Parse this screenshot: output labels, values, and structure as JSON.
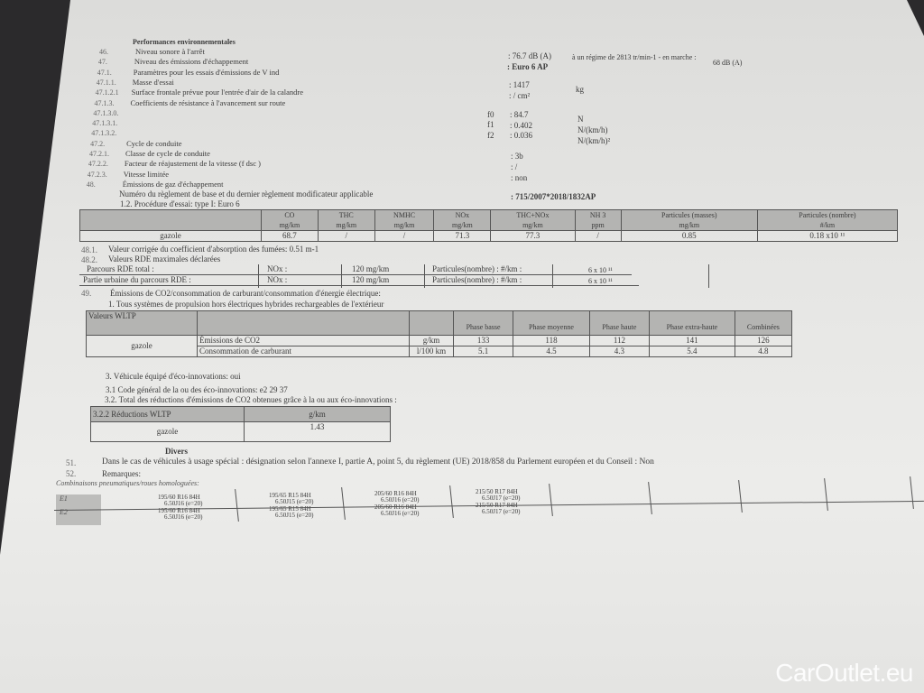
{
  "section_title": "Performances environnementales",
  "items": [
    {
      "num": "46.",
      "label": "Niveau sonore à l'arrêt"
    },
    {
      "num": "47.",
      "label": "Niveau des émissions d'échappement"
    },
    {
      "num": "47.1.",
      "label": "Paramètres pour les essais d'émissions de V ind"
    },
    {
      "num": "47.1.1.",
      "label": "Masse d'essai"
    },
    {
      "num": "47.1.2.1",
      "label": "Surface frontale prévue pour l'entrée d'air de la calandre"
    },
    {
      "num": "47.1.3.",
      "label": "Coefficients de résistance à l'avancement sur route"
    },
    {
      "num": "47.1.3.0.",
      "label": ""
    },
    {
      "num": "47.1.3.1.",
      "label": ""
    },
    {
      "num": "47.1.3.2.",
      "label": ""
    },
    {
      "num": "47.2.",
      "label": "Cycle de conduite"
    },
    {
      "num": "47.2.1.",
      "label": "Classe de cycle de conduite"
    },
    {
      "num": "47.2.2.",
      "label": "Facteur de réajustement de la vitesse (f dsc )"
    },
    {
      "num": "47.2.3.",
      "label": "Vitesse limitée"
    },
    {
      "num": "48.",
      "label": "Émissions de gaz d'échappement"
    }
  ],
  "regulation_label": "Numéro du règlement de base et du dernier règlement modificateur applicable",
  "procedure": "1.2. Procédure d'essai: type I: Euro 6",
  "values": {
    "noise": ": 76.7 dB (A)",
    "noise_regime": "à un régime de 2813 tr/min-1 - en marche :",
    "noise_moving": "68 dB (A)",
    "euro": ": Euro 6 AP",
    "mass": ": 1417",
    "mass_unit": "kg",
    "surface": ": / cm²",
    "f0_label": "f0",
    "f0": ": 84.7",
    "f0_unit": "N",
    "f1_label": "f1",
    "f1": ": 0.402",
    "f1_unit": "N/(km/h)",
    "f2_label": "f2",
    "f2": ": 0.036",
    "f2_unit": "N/(km/h)²",
    "cycle_class": ": 3b",
    "fdsc": ": /",
    "speed_limited": ": non",
    "regulation": ": 715/2007*2018/1832AP"
  },
  "emissions_table": {
    "headers": [
      {
        "name": "CO",
        "unit": "mg/km"
      },
      {
        "name": "THC",
        "unit": "mg/km"
      },
      {
        "name": "NMHC",
        "unit": "mg/km"
      },
      {
        "name": "NOx",
        "unit": "mg/km"
      },
      {
        "name": "THC+NOx",
        "unit": "mg/km"
      },
      {
        "name": "NH 3",
        "unit": "ppm"
      },
      {
        "name": "Particules (masses)",
        "unit": "mg/km"
      },
      {
        "name": "Particules (nombre)",
        "unit": "#/km"
      }
    ],
    "fuel": "gazole",
    "values": [
      "68.7",
      "/",
      "/",
      "71.3",
      "77.3",
      "/",
      "0.85",
      "0.18 x10 ¹¹"
    ]
  },
  "smoke": {
    "num": "48.1.",
    "label": "Valeur corrigée du coefficient d'absorption des fumées: 0.51 m-1"
  },
  "rde": {
    "num": "48.2.",
    "label": "Valeurs RDE maximales déclarées",
    "rows": [
      {
        "label": "Parcours RDE total :",
        "nox": "NOx :",
        "nox_val": "120 mg/km",
        "pn": "Particules(nombre) : #/km :",
        "pn_val": "6 x 10 ¹¹"
      },
      {
        "label": "Partie urbaine du parcours RDE      :",
        "nox": "NOx :",
        "nox_val": "120 mg/km",
        "pn": "Particules(nombre) : #/km :",
        "pn_val": "6 x 10 ¹¹"
      }
    ]
  },
  "co2": {
    "num": "49.",
    "label": "Émissions de CO2/consommation de carburant/consommation d'énergie électrique:",
    "sub": "1. Tous systèmes de propulsion hors électriques hybrides rechargeables de l'extérieur"
  },
  "wltp_table": {
    "title": "Valeurs WLTP",
    "phases": [
      "Phase basse",
      "Phase moyenne",
      "Phase haute",
      "Phase extra-haute",
      "Combinées"
    ],
    "fuel": "gazole",
    "rows": [
      {
        "label": "Émissions de CO2",
        "unit": "g/km",
        "values": [
          "133",
          "118",
          "112",
          "141",
          "126"
        ]
      },
      {
        "label": "Consommation de carburant",
        "unit": "l/100 km",
        "values": [
          "5.1",
          "4.5",
          "4.3",
          "5.4",
          "4.8"
        ]
      }
    ]
  },
  "eco": {
    "equipped": "3. Véhicule équipé d'éco-innovations: oui",
    "code": "3.1 Code général de la ou des éco-innovations: e2 29 37",
    "total": "3.2. Total des réductions d'émissions de CO2 obtenues grâce à la ou aux éco-innovations :",
    "table": {
      "title": "3.2.2 Réductions WLTP",
      "unit": "g/km",
      "fuel": "gazole",
      "value": "1.43"
    }
  },
  "divers": {
    "title": "Divers",
    "n51": "51.",
    "t51": "Dans le cas de véhicules à usage spécial : désignation selon l'annexe I, partie A, point 5, du règlement (UE) 2018/858 du Parlement européen et du Conseil : Non",
    "n52": "52.",
    "t52": "Remarques:"
  },
  "tyres": {
    "title": "Combinaisons pneumatiques/roues homologuées:",
    "rows": [
      {
        "axle": "E1",
        "cells": [
          [
            "195/60 R16 84H",
            "6.50J16 (e=20)"
          ],
          [
            "195/65 R15 84H",
            "6.50J15 (e=20)"
          ],
          [
            "205/60 R16 84H",
            "6.50J16 (e=20)"
          ],
          [
            "215/50 R17 84H",
            "6.50J17 (e=20)"
          ]
        ]
      },
      {
        "axle": "E2",
        "cells": [
          [
            "195/60 R16 84H",
            "6.50J16 (e=20)"
          ],
          [
            "195/65 R15 84H",
            "6.50J15 (e=20)"
          ],
          [
            "205/60 R16 84H",
            "6.50J16 (e=20)"
          ],
          [
            "215/50 R17 84H",
            "6.50J17 (e=20)"
          ]
        ]
      }
    ]
  },
  "watermark": "CarOutlet.eu"
}
